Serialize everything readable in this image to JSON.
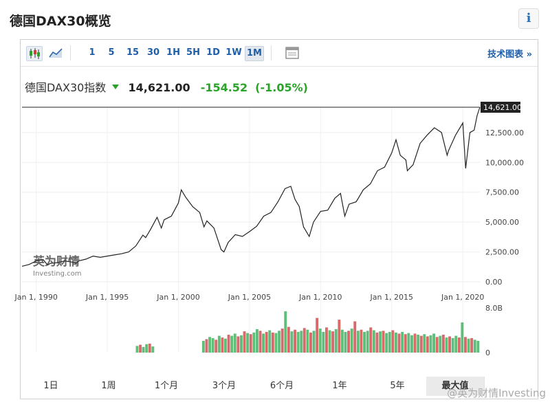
{
  "page": {
    "title": "德国DAX30概览",
    "info_label": "i"
  },
  "toolbar": {
    "intervals": [
      "1",
      "5",
      "15",
      "30",
      "1H",
      "5H",
      "1D",
      "1W",
      "1M"
    ],
    "active_interval": "1M",
    "tech_chart_link": "技术图表 »"
  },
  "quote": {
    "name": "德国DAX30指数",
    "price": "14,621.00",
    "change": "-154.52",
    "change_pct": "(-1.05%)",
    "up_color": "#29a329",
    "down_color": "#d63b3b"
  },
  "ranges": [
    "1日",
    "1周",
    "1个月",
    "3个月",
    "6个月",
    "1年",
    "5年",
    "最大值"
  ],
  "active_range": "最大值",
  "watermark": "@英为财情Investing",
  "chart_data": {
    "type": "line",
    "title": "",
    "xlabel": "",
    "ylabel": "",
    "x_ticks": [
      "Jan 1, 1990",
      "Jan 1, 1995",
      "Jan 1, 2000",
      "Jan 1, 2005",
      "Jan 1, 2010",
      "Jan 1, 2015",
      "Jan 1, 2020"
    ],
    "y_ticks": [
      "12,500.00",
      "10,000.00",
      "7,500.00",
      "5,000.00",
      "2,500.00",
      "0.00"
    ],
    "y_tick_values": [
      12500,
      10000,
      7500,
      5000,
      2500,
      0
    ],
    "ylim": [
      0,
      14621
    ],
    "xlim": [
      1989.0,
      2021.2
    ],
    "last_value_label": "14,621.00",
    "last_value": 14621,
    "series": [
      {
        "x": [
          1989.0,
          1989.5,
          1990.0,
          1990.5,
          1990.8,
          1991.0,
          1991.5,
          1992.0,
          1992.5,
          1992.8,
          1993.0,
          1993.5,
          1994.0,
          1994.5,
          1995.0,
          1995.5,
          1996.0,
          1996.5,
          1997.0,
          1997.5,
          1997.7,
          1998.0,
          1998.5,
          1998.8,
          1999.0,
          1999.5,
          2000.0,
          2000.2,
          2000.5,
          2001.0,
          2001.5,
          2001.8,
          2002.0,
          2002.5,
          2003.0,
          2003.2,
          2003.5,
          2004.0,
          2004.5,
          2005.0,
          2005.5,
          2006.0,
          2006.5,
          2007.0,
          2007.5,
          2007.9,
          2008.2,
          2008.5,
          2008.8,
          2009.2,
          2009.5,
          2010.0,
          2010.5,
          2011.0,
          2011.4,
          2011.7,
          2012.0,
          2012.5,
          2013.0,
          2013.5,
          2014.0,
          2014.5,
          2015.0,
          2015.3,
          2015.6,
          2016.0,
          2016.1,
          2016.5,
          2017.0,
          2017.5,
          2018.0,
          2018.5,
          2018.9,
          2019.0,
          2019.5,
          2020.0,
          2020.2,
          2020.5,
          2020.8,
          2021.0,
          2021.2
        ],
        "values": [
          1300,
          1450,
          1750,
          1850,
          1400,
          1550,
          1600,
          1750,
          1650,
          1550,
          1750,
          1900,
          2150,
          2050,
          2150,
          2250,
          2350,
          2500,
          3000,
          3900,
          3700,
          4300,
          5400,
          4500,
          5200,
          5500,
          6600,
          7700,
          7100,
          6300,
          5800,
          4600,
          5100,
          4500,
          2700,
          2500,
          3300,
          3950,
          3800,
          4200,
          4650,
          5500,
          5800,
          6700,
          7800,
          8000,
          6900,
          6300,
          4600,
          3800,
          5000,
          5900,
          6000,
          7000,
          7400,
          5500,
          6500,
          6700,
          7700,
          8200,
          9300,
          9600,
          10800,
          11900,
          10600,
          10200,
          9300,
          9800,
          11600,
          12300,
          12900,
          12500,
          10600,
          11000,
          12300,
          13300,
          9500,
          12500,
          12700,
          13900,
          14621
        ]
      }
    ],
    "volume": {
      "top_tick": "8.0B",
      "bottom_tick": "0",
      "max": 8.0,
      "x_start": 1997.0,
      "x_end": 2021.2,
      "values": [
        1.2,
        1.4,
        1.0,
        1.5,
        1.6,
        1.1,
        0,
        0,
        0,
        0,
        0,
        0,
        0,
        0,
        0,
        0,
        0,
        0,
        0,
        0,
        0,
        2.1,
        2.4,
        2.8,
        2.6,
        2.3,
        3.0,
        2.7,
        2.5,
        3.2,
        3.0,
        3.4,
        2.9,
        3.1,
        3.8,
        3.5,
        3.3,
        3.6,
        4.2,
        3.9,
        3.4,
        3.7,
        4.0,
        3.6,
        3.5,
        3.9,
        4.3,
        7.4,
        4.6,
        3.8,
        4.1,
        3.7,
        3.9,
        4.4,
        4.1,
        3.6,
        3.9,
        6.2,
        4.3,
        3.7,
        4.5,
        4.0,
        3.8,
        4.2,
        5.9,
        4.1,
        3.7,
        3.9,
        4.3,
        5.6,
        3.9,
        4.1,
        3.7,
        3.9,
        4.5,
        4.0,
        3.6,
        3.8,
        3.9,
        3.5,
        3.7,
        4.0,
        3.6,
        3.4,
        3.7,
        3.3,
        3.5,
        3.1,
        3.4,
        3.2,
        3.0,
        3.3,
        2.9,
        3.1,
        3.4,
        2.8,
        3.0,
        3.2,
        2.7,
        2.9,
        2.6,
        3.0,
        2.7,
        5.4,
        2.8,
        2.5,
        2.6,
        2.3,
        2.1
      ],
      "colors_pattern": [
        "#5fbf7a",
        "#d86a6a",
        "#5fbf7a",
        "#5fbf7a",
        "#d86a6a",
        "#5fbf7a",
        "#d86a6a"
      ]
    }
  }
}
